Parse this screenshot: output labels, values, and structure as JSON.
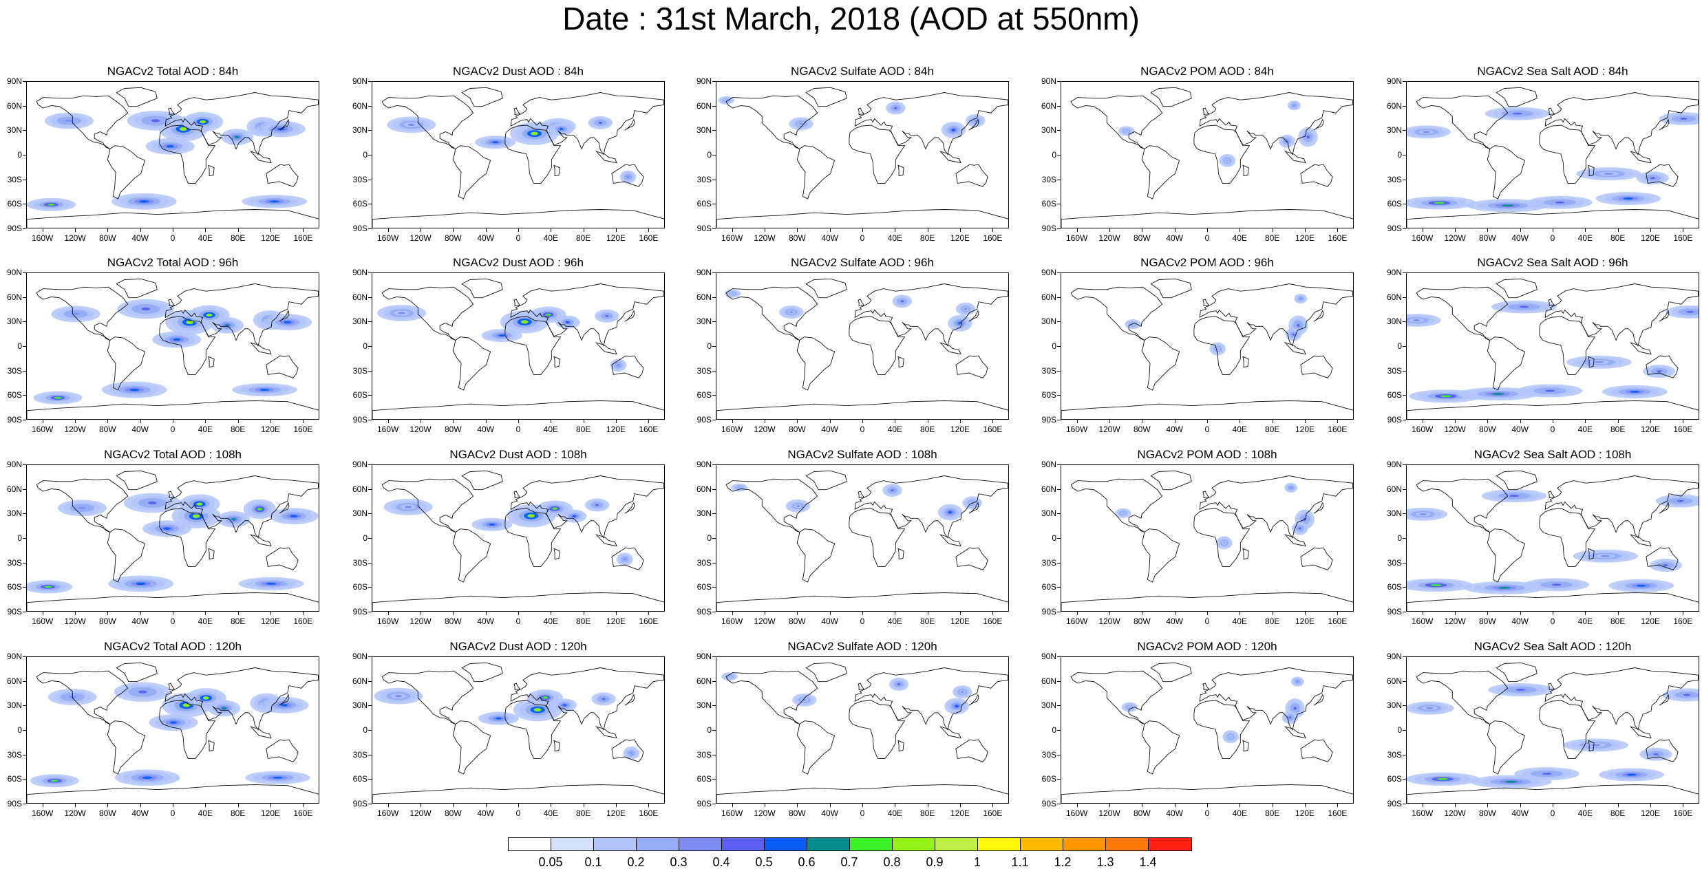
{
  "title": "Date : 31st March, 2018 (AOD at 550nm)",
  "latitude_labels": [
    "90N",
    "60N",
    "30N",
    "0",
    "30S",
    "60S",
    "90S"
  ],
  "longitude_labels": [
    "160W",
    "120W",
    "80W",
    "40W",
    "0",
    "40E",
    "80E",
    "120E",
    "160E"
  ],
  "species": [
    {
      "key": "total",
      "label": "Total AOD",
      "intensity": 1.0
    },
    {
      "key": "dust",
      "label": "Dust AOD",
      "intensity": 0.9
    },
    {
      "key": "sulfate",
      "label": "Sulfate AOD",
      "intensity": 0.35
    },
    {
      "key": "pom",
      "label": "POM AOD",
      "intensity": 0.3
    },
    {
      "key": "seasalt",
      "label": "Sea Salt AOD",
      "intensity": 0.6
    }
  ],
  "panels": [
    [
      "NGACv2 Total AOD : 84h",
      "NGACv2 Dust AOD : 84h",
      "NGACv2 Sulfate AOD : 84h",
      "NGACv2 POM AOD : 84h",
      "NGACv2 Sea Salt AOD : 84h"
    ],
    [
      "NGACv2 Total AOD : 96h",
      "NGACv2 Dust AOD : 96h",
      "NGACv2 Sulfate AOD : 96h",
      "NGACv2 POM AOD : 96h",
      "NGACv2 Sea Salt AOD : 96h"
    ],
    [
      "NGACv2 Total AOD : 108h",
      "NGACv2 Dust AOD : 108h",
      "NGACv2 Sulfate AOD : 108h",
      "NGACv2 POM AOD : 108h",
      "NGACv2 Sea Salt AOD : 108h"
    ],
    [
      "NGACv2 Total AOD : 120h",
      "NGACv2 Dust AOD : 120h",
      "NGACv2 Sulfate AOD : 120h",
      "NGACv2 POM AOD : 120h",
      "NGACv2 Sea Salt  AOD : 120h"
    ]
  ],
  "colorbar": {
    "levels": [
      "0.05",
      "0.1",
      "0.2",
      "0.3",
      "0.4",
      "0.5",
      "0.6",
      "0.7",
      "0.8",
      "0.9",
      "1",
      "1.1",
      "1.2",
      "1.3",
      "1.4"
    ],
    "colors": [
      "#ffffff",
      "#d5e1fd",
      "#b2c5fa",
      "#93adf6",
      "#7d8df2",
      "#5a5ff0",
      "#0a5ef6",
      "#058c8c",
      "#3df12b",
      "#95f218",
      "#bef048",
      "#fff70e",
      "#ffbb00",
      "#ff9700",
      "#ff7a08",
      "#ff2214"
    ]
  }
}
